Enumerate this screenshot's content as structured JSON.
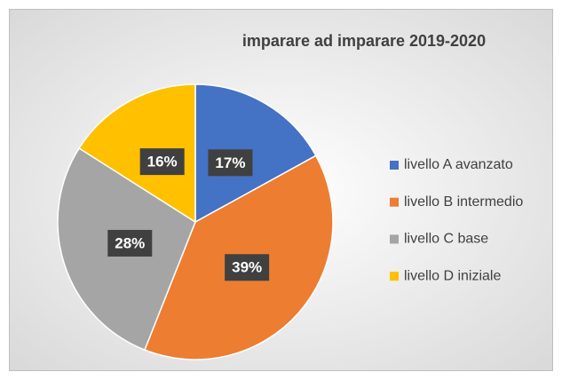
{
  "chart_data": {
    "type": "pie",
    "title": "imparare ad imparare 2019-2020",
    "categories": [
      "livello A avanzato",
      "livello B intermedio",
      "livello C base",
      "livello D iniziale"
    ],
    "values": [
      17,
      39,
      28,
      16
    ],
    "value_labels": [
      "17%",
      "39%",
      "28%",
      "16%"
    ],
    "colors": [
      "#4472c4",
      "#ed7d31",
      "#a5a5a5",
      "#ffc000"
    ],
    "legend": "right"
  }
}
